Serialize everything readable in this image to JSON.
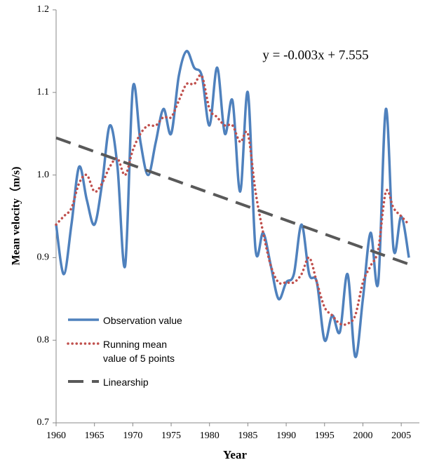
{
  "chart_data": {
    "type": "line",
    "annotation": "y = -0.003x + 7.555",
    "x_label": "Year",
    "y_label": "Mean velocity（m/s)",
    "x": [
      1960,
      1961,
      1962,
      1963,
      1964,
      1965,
      1966,
      1967,
      1968,
      1969,
      1970,
      1971,
      1972,
      1973,
      1974,
      1975,
      1976,
      1977,
      1978,
      1979,
      1980,
      1981,
      1982,
      1983,
      1984,
      1985,
      1986,
      1987,
      1988,
      1989,
      1990,
      1991,
      1992,
      1993,
      1994,
      1995,
      1996,
      1997,
      1998,
      1999,
      2000,
      2001,
      2002,
      2003,
      2004,
      2005,
      2006
    ],
    "series": [
      {
        "name": "Observation value",
        "color": "#4f81bd",
        "style": "solid",
        "values": [
          0.94,
          0.88,
          0.94,
          1.01,
          0.97,
          0.94,
          0.99,
          1.06,
          1.01,
          0.89,
          1.105,
          1.04,
          1.0,
          1.04,
          1.08,
          1.05,
          1.12,
          1.15,
          1.13,
          1.12,
          1.06,
          1.13,
          1.05,
          1.09,
          0.98,
          1.1,
          0.91,
          0.93,
          0.89,
          0.85,
          0.87,
          0.88,
          0.94,
          0.88,
          0.87,
          0.8,
          0.83,
          0.81,
          0.88,
          0.78,
          0.85,
          0.93,
          0.87,
          1.08,
          0.91,
          0.95,
          0.9
        ]
      },
      {
        "name": "Running mean value of 5 points",
        "color": "#c0504d",
        "style": "dotted",
        "values": [
          0.94,
          0.95,
          0.96,
          0.99,
          1.0,
          0.98,
          0.99,
          1.01,
          1.02,
          1.0,
          1.03,
          1.05,
          1.06,
          1.06,
          1.07,
          1.07,
          1.09,
          1.11,
          1.11,
          1.12,
          1.08,
          1.07,
          1.06,
          1.06,
          1.04,
          1.05,
          0.98,
          0.93,
          0.89,
          0.87,
          0.87,
          0.87,
          0.88,
          0.9,
          0.87,
          0.84,
          0.83,
          0.82,
          0.82,
          0.83,
          0.87,
          0.89,
          0.91,
          0.98,
          0.96,
          0.95,
          0.94
        ]
      },
      {
        "name": "Linearship",
        "color": "#595959",
        "style": "dashed",
        "x": [
          1960,
          2006
        ],
        "values": [
          1.045,
          0.892
        ]
      }
    ],
    "xlim": [
      1960,
      2007
    ],
    "ylim": [
      0.7,
      1.2
    ],
    "xticks": [
      1960,
      1965,
      1970,
      1975,
      1980,
      1985,
      1990,
      1995,
      2000,
      2005
    ],
    "yticks": [
      0.7,
      0.8,
      0.9,
      {
        "value": 1,
        "label": "1.0"
      },
      1.1,
      1.2
    ],
    "grid": false
  }
}
